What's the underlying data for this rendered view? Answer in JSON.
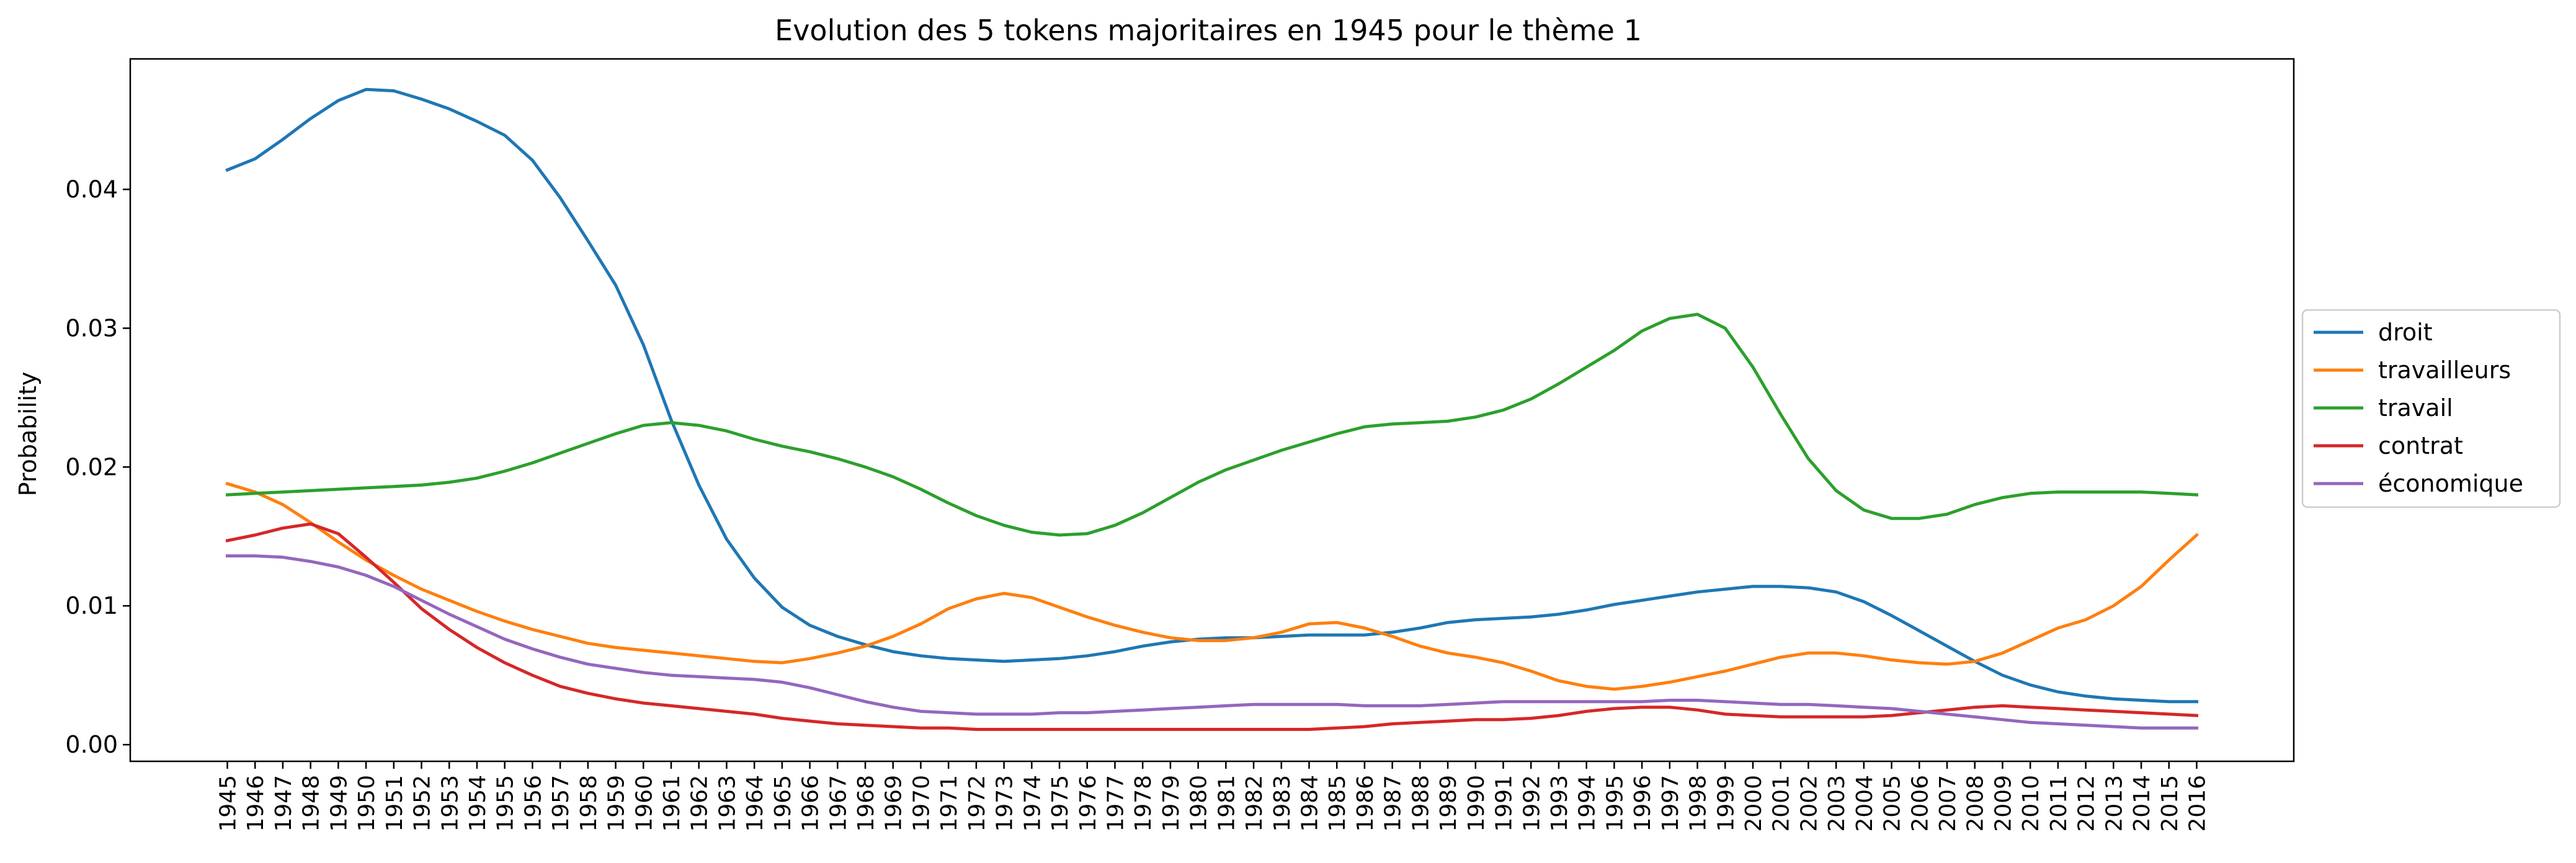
{
  "chart_data": {
    "type": "line",
    "title": "Evolution des 5 tokens majoritaires en 1945 pour le thème 1",
    "xlabel": "",
    "ylabel": "Probability",
    "xlim": [
      1941.5,
      2019.5
    ],
    "ylim": [
      -0.0012,
      0.0494
    ],
    "yticks": [
      "0.00",
      "0.01",
      "0.02",
      "0.03",
      "0.04"
    ],
    "ytick_values": [
      0.0,
      0.01,
      0.02,
      0.03,
      0.04
    ],
    "grid": false,
    "legend_position": "right-center",
    "x": [
      1945,
      1946,
      1947,
      1948,
      1949,
      1950,
      1951,
      1952,
      1953,
      1954,
      1955,
      1956,
      1957,
      1958,
      1959,
      1960,
      1961,
      1962,
      1963,
      1964,
      1965,
      1966,
      1967,
      1968,
      1969,
      1970,
      1971,
      1972,
      1973,
      1974,
      1975,
      1976,
      1977,
      1978,
      1979,
      1980,
      1981,
      1982,
      1983,
      1984,
      1985,
      1986,
      1987,
      1988,
      1989,
      1990,
      1991,
      1992,
      1993,
      1994,
      1995,
      1996,
      1997,
      1998,
      1999,
      2000,
      2001,
      2002,
      2003,
      2004,
      2005,
      2006,
      2007,
      2008,
      2009,
      2010,
      2011,
      2012,
      2013,
      2014,
      2015,
      2016
    ],
    "series": [
      {
        "name": "droit",
        "color": "#1f77b4",
        "values": [
          0.0414,
          0.0422,
          0.0436,
          0.0451,
          0.0464,
          0.0472,
          0.0471,
          0.0465,
          0.0458,
          0.0449,
          0.0439,
          0.0421,
          0.0394,
          0.0363,
          0.0331,
          0.0288,
          0.0234,
          0.0187,
          0.0148,
          0.012,
          0.0099,
          0.0086,
          0.0078,
          0.0072,
          0.0067,
          0.0064,
          0.0062,
          0.0061,
          0.006,
          0.0061,
          0.0062,
          0.0064,
          0.0067,
          0.0071,
          0.0074,
          0.0076,
          0.0077,
          0.0077,
          0.0078,
          0.0079,
          0.0079,
          0.0079,
          0.0081,
          0.0084,
          0.0088,
          0.009,
          0.0091,
          0.0092,
          0.0094,
          0.0097,
          0.0101,
          0.0104,
          0.0107,
          0.011,
          0.0112,
          0.0114,
          0.0114,
          0.0113,
          0.011,
          0.0103,
          0.0093,
          0.0082,
          0.0071,
          0.006,
          0.005,
          0.0043,
          0.0038,
          0.0035,
          0.0033,
          0.0032,
          0.0031,
          0.0031
        ]
      },
      {
        "name": "travailleurs",
        "color": "#ff7f0e",
        "values": [
          0.0188,
          0.0182,
          0.0173,
          0.016,
          0.0146,
          0.0133,
          0.0122,
          0.0112,
          0.0104,
          0.0096,
          0.0089,
          0.0083,
          0.0078,
          0.0073,
          0.007,
          0.0068,
          0.0066,
          0.0064,
          0.0062,
          0.006,
          0.0059,
          0.0062,
          0.0066,
          0.0071,
          0.0078,
          0.0087,
          0.0098,
          0.0105,
          0.0109,
          0.0106,
          0.0099,
          0.0092,
          0.0086,
          0.0081,
          0.0077,
          0.0075,
          0.0075,
          0.0077,
          0.0081,
          0.0087,
          0.0088,
          0.0084,
          0.0078,
          0.0071,
          0.0066,
          0.0063,
          0.0059,
          0.0053,
          0.0046,
          0.0042,
          0.004,
          0.0042,
          0.0045,
          0.0049,
          0.0053,
          0.0058,
          0.0063,
          0.0066,
          0.0066,
          0.0064,
          0.0061,
          0.0059,
          0.0058,
          0.006,
          0.0066,
          0.0075,
          0.0084,
          0.009,
          0.01,
          0.0114,
          0.0133,
          0.0151
        ]
      },
      {
        "name": "travail",
        "color": "#2ca02c",
        "values": [
          0.018,
          0.0181,
          0.0182,
          0.0183,
          0.0184,
          0.0185,
          0.0186,
          0.0187,
          0.0189,
          0.0192,
          0.0197,
          0.0203,
          0.021,
          0.0217,
          0.0224,
          0.023,
          0.0232,
          0.023,
          0.0226,
          0.022,
          0.0215,
          0.0211,
          0.0206,
          0.02,
          0.0193,
          0.0184,
          0.0174,
          0.0165,
          0.0158,
          0.0153,
          0.0151,
          0.0152,
          0.0158,
          0.0167,
          0.0178,
          0.0189,
          0.0198,
          0.0205,
          0.0212,
          0.0218,
          0.0224,
          0.0229,
          0.0231,
          0.0232,
          0.0233,
          0.0236,
          0.0241,
          0.0249,
          0.026,
          0.0272,
          0.0284,
          0.0298,
          0.0307,
          0.031,
          0.03,
          0.0272,
          0.0238,
          0.0206,
          0.0183,
          0.0169,
          0.0163,
          0.0163,
          0.0166,
          0.0173,
          0.0178,
          0.0181,
          0.0182,
          0.0182,
          0.0182,
          0.0182,
          0.0181,
          0.018
        ]
      },
      {
        "name": "contrat",
        "color": "#d62728",
        "values": [
          0.0147,
          0.0151,
          0.0156,
          0.0159,
          0.0152,
          0.0135,
          0.0117,
          0.0098,
          0.0083,
          0.007,
          0.0059,
          0.005,
          0.0042,
          0.0037,
          0.0033,
          0.003,
          0.0028,
          0.0026,
          0.0024,
          0.0022,
          0.0019,
          0.0017,
          0.0015,
          0.0014,
          0.0013,
          0.0012,
          0.0012,
          0.0011,
          0.0011,
          0.0011,
          0.0011,
          0.0011,
          0.0011,
          0.0011,
          0.0011,
          0.0011,
          0.0011,
          0.0011,
          0.0011,
          0.0011,
          0.0012,
          0.0013,
          0.0015,
          0.0016,
          0.0017,
          0.0018,
          0.0018,
          0.0019,
          0.0021,
          0.0024,
          0.0026,
          0.0027,
          0.0027,
          0.0025,
          0.0022,
          0.0021,
          0.002,
          0.002,
          0.002,
          0.002,
          0.0021,
          0.0023,
          0.0025,
          0.0027,
          0.0028,
          0.0027,
          0.0026,
          0.0025,
          0.0024,
          0.0023,
          0.0022,
          0.0021
        ]
      },
      {
        "name": "économique",
        "color": "#9467bd",
        "values": [
          0.0136,
          0.0136,
          0.0135,
          0.0132,
          0.0128,
          0.0122,
          0.0114,
          0.0104,
          0.0094,
          0.0085,
          0.0076,
          0.0069,
          0.0063,
          0.0058,
          0.0055,
          0.0052,
          0.005,
          0.0049,
          0.0048,
          0.0047,
          0.0045,
          0.0041,
          0.0036,
          0.0031,
          0.0027,
          0.0024,
          0.0023,
          0.0022,
          0.0022,
          0.0022,
          0.0023,
          0.0023,
          0.0024,
          0.0025,
          0.0026,
          0.0027,
          0.0028,
          0.0029,
          0.0029,
          0.0029,
          0.0029,
          0.0028,
          0.0028,
          0.0028,
          0.0029,
          0.003,
          0.0031,
          0.0031,
          0.0031,
          0.0031,
          0.0031,
          0.0031,
          0.0032,
          0.0032,
          0.0031,
          0.003,
          0.0029,
          0.0029,
          0.0028,
          0.0027,
          0.0026,
          0.0024,
          0.0022,
          0.002,
          0.0018,
          0.0016,
          0.0015,
          0.0014,
          0.0013,
          0.0012,
          0.0012,
          0.0012
        ]
      }
    ]
  }
}
